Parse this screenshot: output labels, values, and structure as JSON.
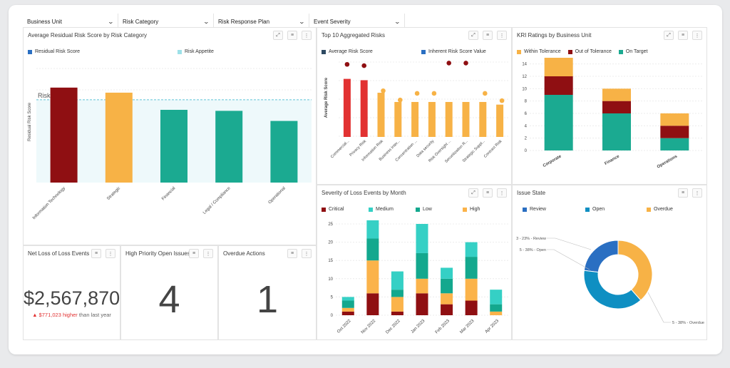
{
  "filters": [
    {
      "label": "Business Unit"
    },
    {
      "label": "Risk Category"
    },
    {
      "label": "Risk Response Plan"
    },
    {
      "label": "Event Severity"
    }
  ],
  "colors": {
    "red": "#8f0f12",
    "bright_red": "#e23232",
    "orange": "#f7b246",
    "teal": "#1baa91",
    "light_teal": "#9de1e8",
    "blue": "#2a6fc2",
    "cyan_blue": "#0f8fc2",
    "navy": "#2e4a62",
    "medium": "#35d0c5",
    "low": "#13a88e",
    "high": "#fbb34a"
  },
  "panels": {
    "avg_residual": {
      "title": "Average Residual Risk Score by Risk Category",
      "legend": [
        "Residual Risk Score",
        "Risk Appetite"
      ],
      "ylabel": "Residual Risk Score",
      "appetite_label": "Risk Appetite"
    },
    "top10": {
      "title": "Top 10 Aggregated Risks",
      "legend": [
        "Average Risk Score",
        "Inherent Risk Score Value"
      ],
      "ylabel": "Average Risk Score"
    },
    "kri": {
      "title": "KRI Ratings by Business Unit",
      "legend": [
        "Within Tolerance",
        "Out of Tolerance",
        "On Target"
      ]
    },
    "severity": {
      "title": "Severity of Loss Events by Month",
      "legend": [
        "Critical",
        "Medium",
        "Low",
        "High"
      ]
    },
    "issue": {
      "title": "Issue State",
      "legend": [
        "Review",
        "Open",
        "Overdue"
      ],
      "labels": [
        "3 - 23% - Review",
        "5 - 38% - Open",
        "5 - 38% - Overdue"
      ]
    },
    "net_loss": {
      "title": "Net Loss of Loss Events",
      "value": "$2,567,870",
      "delta_arrow": "▲",
      "delta": "$771,023 higher",
      "delta_suffix": "than last year"
    },
    "high_priority": {
      "title": "High Priority Open Issues",
      "value": "4"
    },
    "overdue": {
      "title": "Overdue Actions",
      "value": "1"
    }
  },
  "chart_data": [
    {
      "type": "bar",
      "title": "Average Residual Risk Score by Risk Category",
      "ylabel": "Residual Risk Score",
      "categories": [
        "Information Technology",
        "Strategic",
        "Financial",
        "Legal / Compliance",
        "Operational"
      ],
      "values": [
        9.4,
        8.9,
        7.2,
        7.1,
        6.1
      ],
      "colors": [
        "#8f0f12",
        "#f7b246",
        "#1baa91",
        "#1baa91",
        "#1baa91"
      ],
      "appetite": 8.2,
      "ylim": [
        0,
        12
      ]
    },
    {
      "type": "bar",
      "title": "Top 10 Aggregated Risks",
      "ylabel": "Average Risk Score",
      "categories": [
        "Commercial...",
        "Privacy Risk",
        "Information Risk",
        "Business Inter...",
        "Concentration ...",
        "Data security",
        "Risk Oversight ...",
        "Securitization R...",
        "Strategic Suppl...",
        "Contract Risk"
      ],
      "values": [
        8.8,
        8.6,
        6.7,
        5.3,
        5.3,
        5.3,
        5.3,
        5.3,
        5.3,
        4.9
      ],
      "colors": [
        "#e23232",
        "#e23232",
        "#f7b246",
        "#f7b246",
        "#f7b246",
        "#f7b246",
        "#f7b246",
        "#f7b246",
        "#f7b246",
        "#f7b246"
      ],
      "inherent": [
        11,
        10.8,
        7,
        5.6,
        6.6,
        6.6,
        11.2,
        11.2,
        6.6,
        5.5
      ],
      "inherent_colors": [
        "#8f0f12",
        "#8f0f12",
        "#f7b246",
        "#f7b246",
        "#f7b246",
        "#f7b246",
        "#8f0f12",
        "#8f0f12",
        "#f7b246",
        "#f7b246"
      ],
      "ylim": [
        0,
        12
      ]
    },
    {
      "type": "bar",
      "stacked": true,
      "title": "KRI Ratings by Business Unit",
      "categories": [
        "Corporate",
        "Finance",
        "Operations"
      ],
      "series": [
        {
          "name": "On Target",
          "values": [
            9,
            6,
            2
          ]
        },
        {
          "name": "Out of Tolerance",
          "values": [
            3,
            2,
            2
          ]
        },
        {
          "name": "Within Tolerance",
          "values": [
            3,
            2,
            2
          ]
        }
      ],
      "ylim": [
        0,
        15
      ],
      "yticks": [
        0,
        2,
        4,
        6,
        8,
        10,
        12,
        14
      ]
    },
    {
      "type": "bar",
      "stacked": true,
      "title": "Severity of Loss Events by Month",
      "categories": [
        "Oct 2022",
        "Nov 2022",
        "Dec 2022",
        "Jan 2023",
        "Feb 2023",
        "Mar 2023",
        "Apr 2023"
      ],
      "series": [
        {
          "name": "Critical",
          "values": [
            1,
            6,
            1,
            6,
            3,
            4,
            0
          ]
        },
        {
          "name": "High",
          "values": [
            1,
            9,
            4,
            4,
            3,
            6,
            1
          ]
        },
        {
          "name": "Low",
          "values": [
            2,
            6,
            2,
            7,
            4,
            6,
            2
          ]
        },
        {
          "name": "Medium",
          "values": [
            1,
            5,
            5,
            8,
            3,
            4,
            4
          ]
        }
      ],
      "ylim": [
        0,
        25
      ],
      "yticks": [
        0,
        5,
        10,
        15,
        20,
        25
      ]
    },
    {
      "type": "pie",
      "title": "Issue State",
      "categories": [
        "Review",
        "Open",
        "Overdue"
      ],
      "values": [
        3,
        5,
        5
      ]
    }
  ]
}
